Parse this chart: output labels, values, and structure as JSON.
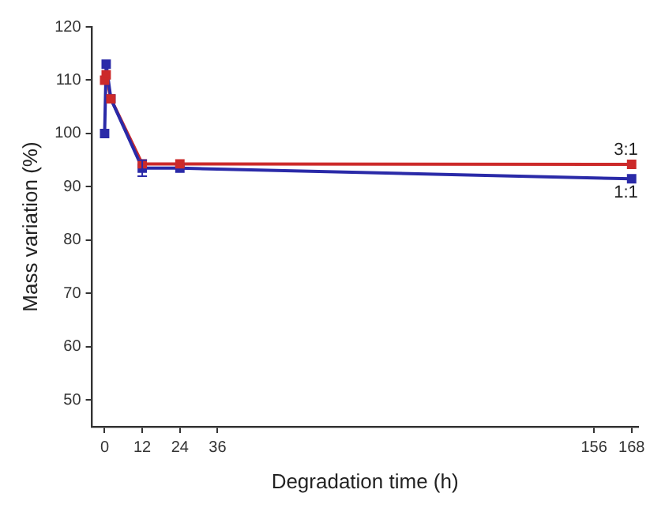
{
  "chart_data": {
    "type": "line",
    "xlabel": "Degradation time (h)",
    "ylabel": "Mass variation (%)",
    "xlim": [
      -4,
      170
    ],
    "xticks": [
      0,
      12,
      24,
      36,
      156,
      168
    ],
    "ylim": [
      45,
      120
    ],
    "yticks": [
      50,
      60,
      70,
      80,
      90,
      100,
      110,
      120
    ],
    "grid": false,
    "legend": "right",
    "marker": "square",
    "line_style": "solid",
    "series": [
      {
        "name": "3:1",
        "color": "#cc2a2a",
        "x": [
          0,
          0.5,
          2,
          12,
          24,
          168
        ],
        "values": [
          110,
          111,
          106.5,
          94.3,
          94.3,
          94.2
        ]
      },
      {
        "name": "1:1",
        "color": "#2a2aa8",
        "x": [
          0,
          0.5,
          2,
          12,
          24,
          168
        ],
        "values": [
          100,
          113,
          106.5,
          93.5,
          93.5,
          91.5
        ],
        "errors": [
          null,
          null,
          null,
          1.5,
          null,
          null
        ]
      }
    ]
  }
}
